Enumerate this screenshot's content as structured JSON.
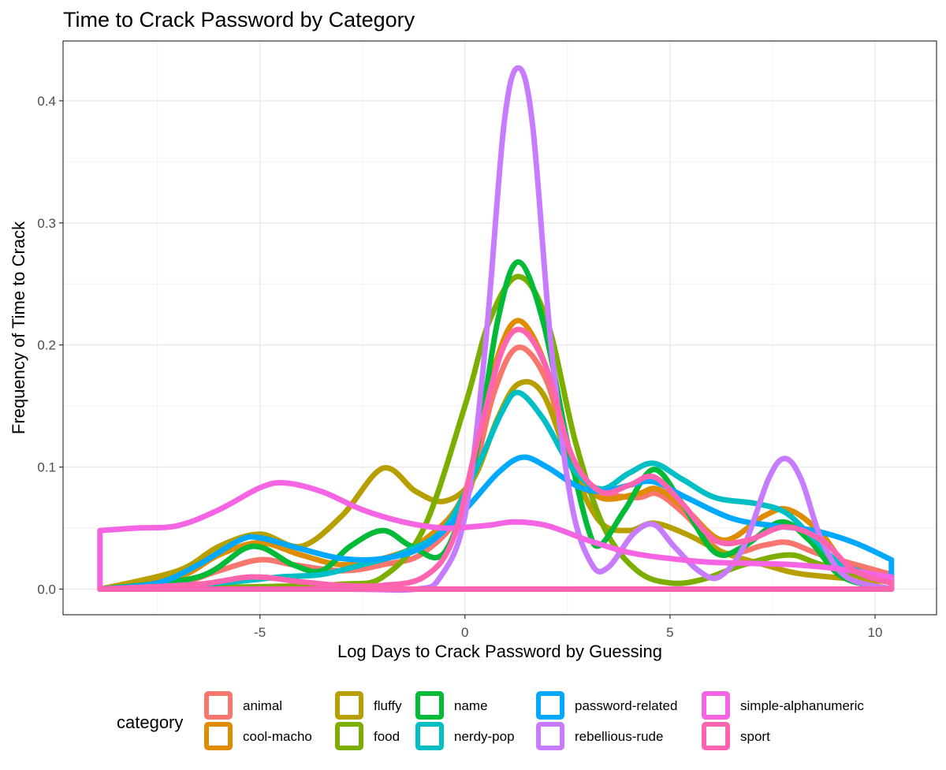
{
  "chart_data": {
    "type": "line",
    "title": "Time to Crack Password by Category",
    "xlabel": "Log Days to Crack Password by Guessing",
    "ylabel": "Frequency of Time to Crack",
    "xlim": [
      -9.8,
      11.5
    ],
    "ylim": [
      -0.021,
      0.449
    ],
    "x_ticks": [
      -5,
      0,
      5,
      10
    ],
    "x_tick_labels": [
      "-5",
      "0",
      "5",
      "10"
    ],
    "y_ticks": [
      0.0,
      0.1,
      0.2,
      0.3,
      0.4
    ],
    "y_tick_labels": [
      "0.0",
      "0.1",
      "0.2",
      "0.3",
      "0.4"
    ],
    "grid": true,
    "legend": {
      "title": "category",
      "position": "bottom"
    },
    "x_range": [
      -8.9,
      10.4
    ],
    "series": [
      {
        "name": "animal",
        "color": "#F8766D",
        "points": [
          [
            -8.9,
            0.0
          ],
          [
            -7,
            0.005
          ],
          [
            -6,
            0.015
          ],
          [
            -5,
            0.024
          ],
          [
            -4.2,
            0.02
          ],
          [
            -3,
            0.015
          ],
          [
            -2,
            0.02
          ],
          [
            -1,
            0.03
          ],
          [
            0,
            0.07
          ],
          [
            0.7,
            0.16
          ],
          [
            1.3,
            0.198
          ],
          [
            2,
            0.17
          ],
          [
            2.6,
            0.1
          ],
          [
            3.3,
            0.08
          ],
          [
            4.2,
            0.075
          ],
          [
            4.7,
            0.078
          ],
          [
            5.4,
            0.06
          ],
          [
            6.3,
            0.03
          ],
          [
            7.3,
            0.036
          ],
          [
            7.9,
            0.038
          ],
          [
            8.7,
            0.028
          ],
          [
            10.4,
            0.012
          ]
        ]
      },
      {
        "name": "cool-macho",
        "color": "#DE8C00",
        "points": [
          [
            -8.9,
            0.0
          ],
          [
            -7,
            0.01
          ],
          [
            -6,
            0.028
          ],
          [
            -5,
            0.038
          ],
          [
            -4,
            0.028
          ],
          [
            -3,
            0.02
          ],
          [
            -2,
            0.025
          ],
          [
            -1,
            0.04
          ],
          [
            0,
            0.08
          ],
          [
            0.7,
            0.18
          ],
          [
            1.3,
            0.22
          ],
          [
            2,
            0.18
          ],
          [
            2.6,
            0.1
          ],
          [
            3.3,
            0.075
          ],
          [
            4.2,
            0.078
          ],
          [
            4.7,
            0.082
          ],
          [
            5.4,
            0.065
          ],
          [
            6.3,
            0.04
          ],
          [
            7.3,
            0.06
          ],
          [
            7.9,
            0.065
          ],
          [
            8.7,
            0.045
          ],
          [
            9.5,
            0.01
          ],
          [
            10.4,
            0.0
          ]
        ]
      },
      {
        "name": "fluffy",
        "color": "#B79F00",
        "points": [
          [
            -8.9,
            0.0
          ],
          [
            -7,
            0.015
          ],
          [
            -6,
            0.035
          ],
          [
            -5,
            0.045
          ],
          [
            -4,
            0.035
          ],
          [
            -3,
            0.06
          ],
          [
            -2,
            0.099
          ],
          [
            -1.2,
            0.08
          ],
          [
            -0.5,
            0.072
          ],
          [
            0.2,
            0.09
          ],
          [
            0.8,
            0.14
          ],
          [
            1.3,
            0.168
          ],
          [
            1.9,
            0.16
          ],
          [
            2.6,
            0.1
          ],
          [
            3.3,
            0.055
          ],
          [
            4,
            0.048
          ],
          [
            4.6,
            0.054
          ],
          [
            5.4,
            0.045
          ],
          [
            6.3,
            0.03
          ],
          [
            7.3,
            0.02
          ],
          [
            8.3,
            0.012
          ],
          [
            10.4,
            0.006
          ]
        ]
      },
      {
        "name": "food",
        "color": "#7CAE00",
        "points": [
          [
            -8.9,
            0.0
          ],
          [
            -5,
            0.002
          ],
          [
            -3,
            0.004
          ],
          [
            -2,
            0.01
          ],
          [
            -1,
            0.05
          ],
          [
            0,
            0.15
          ],
          [
            0.6,
            0.22
          ],
          [
            1.3,
            0.256
          ],
          [
            2,
            0.22
          ],
          [
            2.7,
            0.12
          ],
          [
            3.4,
            0.05
          ],
          [
            4.2,
            0.015
          ],
          [
            5,
            0.005
          ],
          [
            5.8,
            0.008
          ],
          [
            6.8,
            0.02
          ],
          [
            7.9,
            0.028
          ],
          [
            8.7,
            0.02
          ],
          [
            10.4,
            0.005
          ]
        ]
      },
      {
        "name": "name",
        "color": "#00BA38",
        "points": [
          [
            -8.9,
            0.0
          ],
          [
            -6.5,
            0.01
          ],
          [
            -5.2,
            0.035
          ],
          [
            -4.2,
            0.02
          ],
          [
            -3.5,
            0.015
          ],
          [
            -2.8,
            0.035
          ],
          [
            -2,
            0.048
          ],
          [
            -1.3,
            0.035
          ],
          [
            -0.5,
            0.03
          ],
          [
            0.2,
            0.1
          ],
          [
            0.8,
            0.22
          ],
          [
            1.3,
            0.268
          ],
          [
            1.9,
            0.22
          ],
          [
            2.5,
            0.12
          ],
          [
            3,
            0.05
          ],
          [
            3.3,
            0.036
          ],
          [
            3.9,
            0.065
          ],
          [
            4.6,
            0.098
          ],
          [
            5.3,
            0.07
          ],
          [
            6.1,
            0.03
          ],
          [
            6.8,
            0.035
          ],
          [
            7.7,
            0.055
          ],
          [
            8.4,
            0.04
          ],
          [
            9.2,
            0.01
          ],
          [
            10.4,
            0.0
          ]
        ]
      },
      {
        "name": "nerdy-pop",
        "color": "#00BFC4",
        "points": [
          [
            -8.9,
            0.0
          ],
          [
            -6,
            0.005
          ],
          [
            -4.5,
            0.01
          ],
          [
            -3.5,
            0.012
          ],
          [
            -2.5,
            0.02
          ],
          [
            -1.5,
            0.03
          ],
          [
            -0.5,
            0.05
          ],
          [
            0.3,
            0.1
          ],
          [
            0.9,
            0.145
          ],
          [
            1.3,
            0.161
          ],
          [
            1.9,
            0.14
          ],
          [
            2.6,
            0.1
          ],
          [
            3.3,
            0.082
          ],
          [
            4.0,
            0.095
          ],
          [
            4.6,
            0.103
          ],
          [
            5.3,
            0.09
          ],
          [
            6.1,
            0.075
          ],
          [
            7.1,
            0.07
          ],
          [
            7.8,
            0.063
          ],
          [
            8.4,
            0.045
          ],
          [
            9.2,
            0.02
          ],
          [
            10.4,
            0.008
          ]
        ]
      },
      {
        "name": "password-related",
        "color": "#00A9FF",
        "points": [
          [
            -8.9,
            0.0
          ],
          [
            -7.5,
            0.005
          ],
          [
            -6.5,
            0.02
          ],
          [
            -5.5,
            0.04
          ],
          [
            -5,
            0.042
          ],
          [
            -4,
            0.033
          ],
          [
            -3,
            0.025
          ],
          [
            -2,
            0.025
          ],
          [
            -1,
            0.035
          ],
          [
            0,
            0.065
          ],
          [
            0.8,
            0.095
          ],
          [
            1.4,
            0.108
          ],
          [
            2,
            0.1
          ],
          [
            2.7,
            0.085
          ],
          [
            3.3,
            0.08
          ],
          [
            4,
            0.085
          ],
          [
            4.6,
            0.088
          ],
          [
            5.4,
            0.075
          ],
          [
            6.5,
            0.058
          ],
          [
            7.5,
            0.052
          ],
          [
            8.5,
            0.048
          ],
          [
            9.5,
            0.038
          ],
          [
            10.4,
            0.024
          ]
        ]
      },
      {
        "name": "rebellious-rude",
        "color": "#C77CFF",
        "points": [
          [
            -8.9,
            0.0
          ],
          [
            -3,
            0.0
          ],
          [
            -1.2,
            0.0
          ],
          [
            -0.6,
            0.01
          ],
          [
            0,
            0.06
          ],
          [
            0.5,
            0.2
          ],
          [
            0.95,
            0.38
          ],
          [
            1.3,
            0.427
          ],
          [
            1.65,
            0.38
          ],
          [
            2.1,
            0.2
          ],
          [
            2.6,
            0.07
          ],
          [
            3.1,
            0.02
          ],
          [
            3.5,
            0.018
          ],
          [
            4.1,
            0.045
          ],
          [
            4.6,
            0.053
          ],
          [
            5.1,
            0.035
          ],
          [
            5.7,
            0.015
          ],
          [
            6.2,
            0.01
          ],
          [
            6.8,
            0.035
          ],
          [
            7.4,
            0.09
          ],
          [
            7.8,
            0.107
          ],
          [
            8.2,
            0.09
          ],
          [
            8.7,
            0.04
          ],
          [
            9.3,
            0.01
          ],
          [
            10.4,
            0.0
          ]
        ]
      },
      {
        "name": "simple-alphanumeric",
        "color": "#F564E3",
        "points": [
          [
            -8.9,
            0.048
          ],
          [
            -8,
            0.05
          ],
          [
            -7,
            0.052
          ],
          [
            -6,
            0.065
          ],
          [
            -5,
            0.083
          ],
          [
            -4.4,
            0.087
          ],
          [
            -3.5,
            0.08
          ],
          [
            -2.5,
            0.065
          ],
          [
            -1.5,
            0.055
          ],
          [
            -0.5,
            0.05
          ],
          [
            0.5,
            0.052
          ],
          [
            1.2,
            0.055
          ],
          [
            2,
            0.052
          ],
          [
            3,
            0.04
          ],
          [
            4,
            0.03
          ],
          [
            5,
            0.025
          ],
          [
            6,
            0.022
          ],
          [
            7,
            0.021
          ],
          [
            8,
            0.02
          ],
          [
            9,
            0.017
          ],
          [
            10.4,
            0.01
          ]
        ]
      },
      {
        "name": "sport",
        "color": "#FF64B0",
        "points": [
          [
            -8.9,
            0.0
          ],
          [
            -6.5,
            0.004
          ],
          [
            -5.2,
            0.01
          ],
          [
            -4,
            0.006
          ],
          [
            -3,
            0.003
          ],
          [
            -2,
            0.003
          ],
          [
            -1,
            0.01
          ],
          [
            -0.3,
            0.04
          ],
          [
            0.3,
            0.12
          ],
          [
            0.9,
            0.195
          ],
          [
            1.4,
            0.212
          ],
          [
            2,
            0.18
          ],
          [
            2.6,
            0.11
          ],
          [
            3.3,
            0.08
          ],
          [
            4,
            0.085
          ],
          [
            4.6,
            0.092
          ],
          [
            5.3,
            0.07
          ],
          [
            6.1,
            0.04
          ],
          [
            6.9,
            0.04
          ],
          [
            7.8,
            0.051
          ],
          [
            8.7,
            0.04
          ],
          [
            9.5,
            0.015
          ],
          [
            10.4,
            0.005
          ]
        ]
      }
    ]
  }
}
